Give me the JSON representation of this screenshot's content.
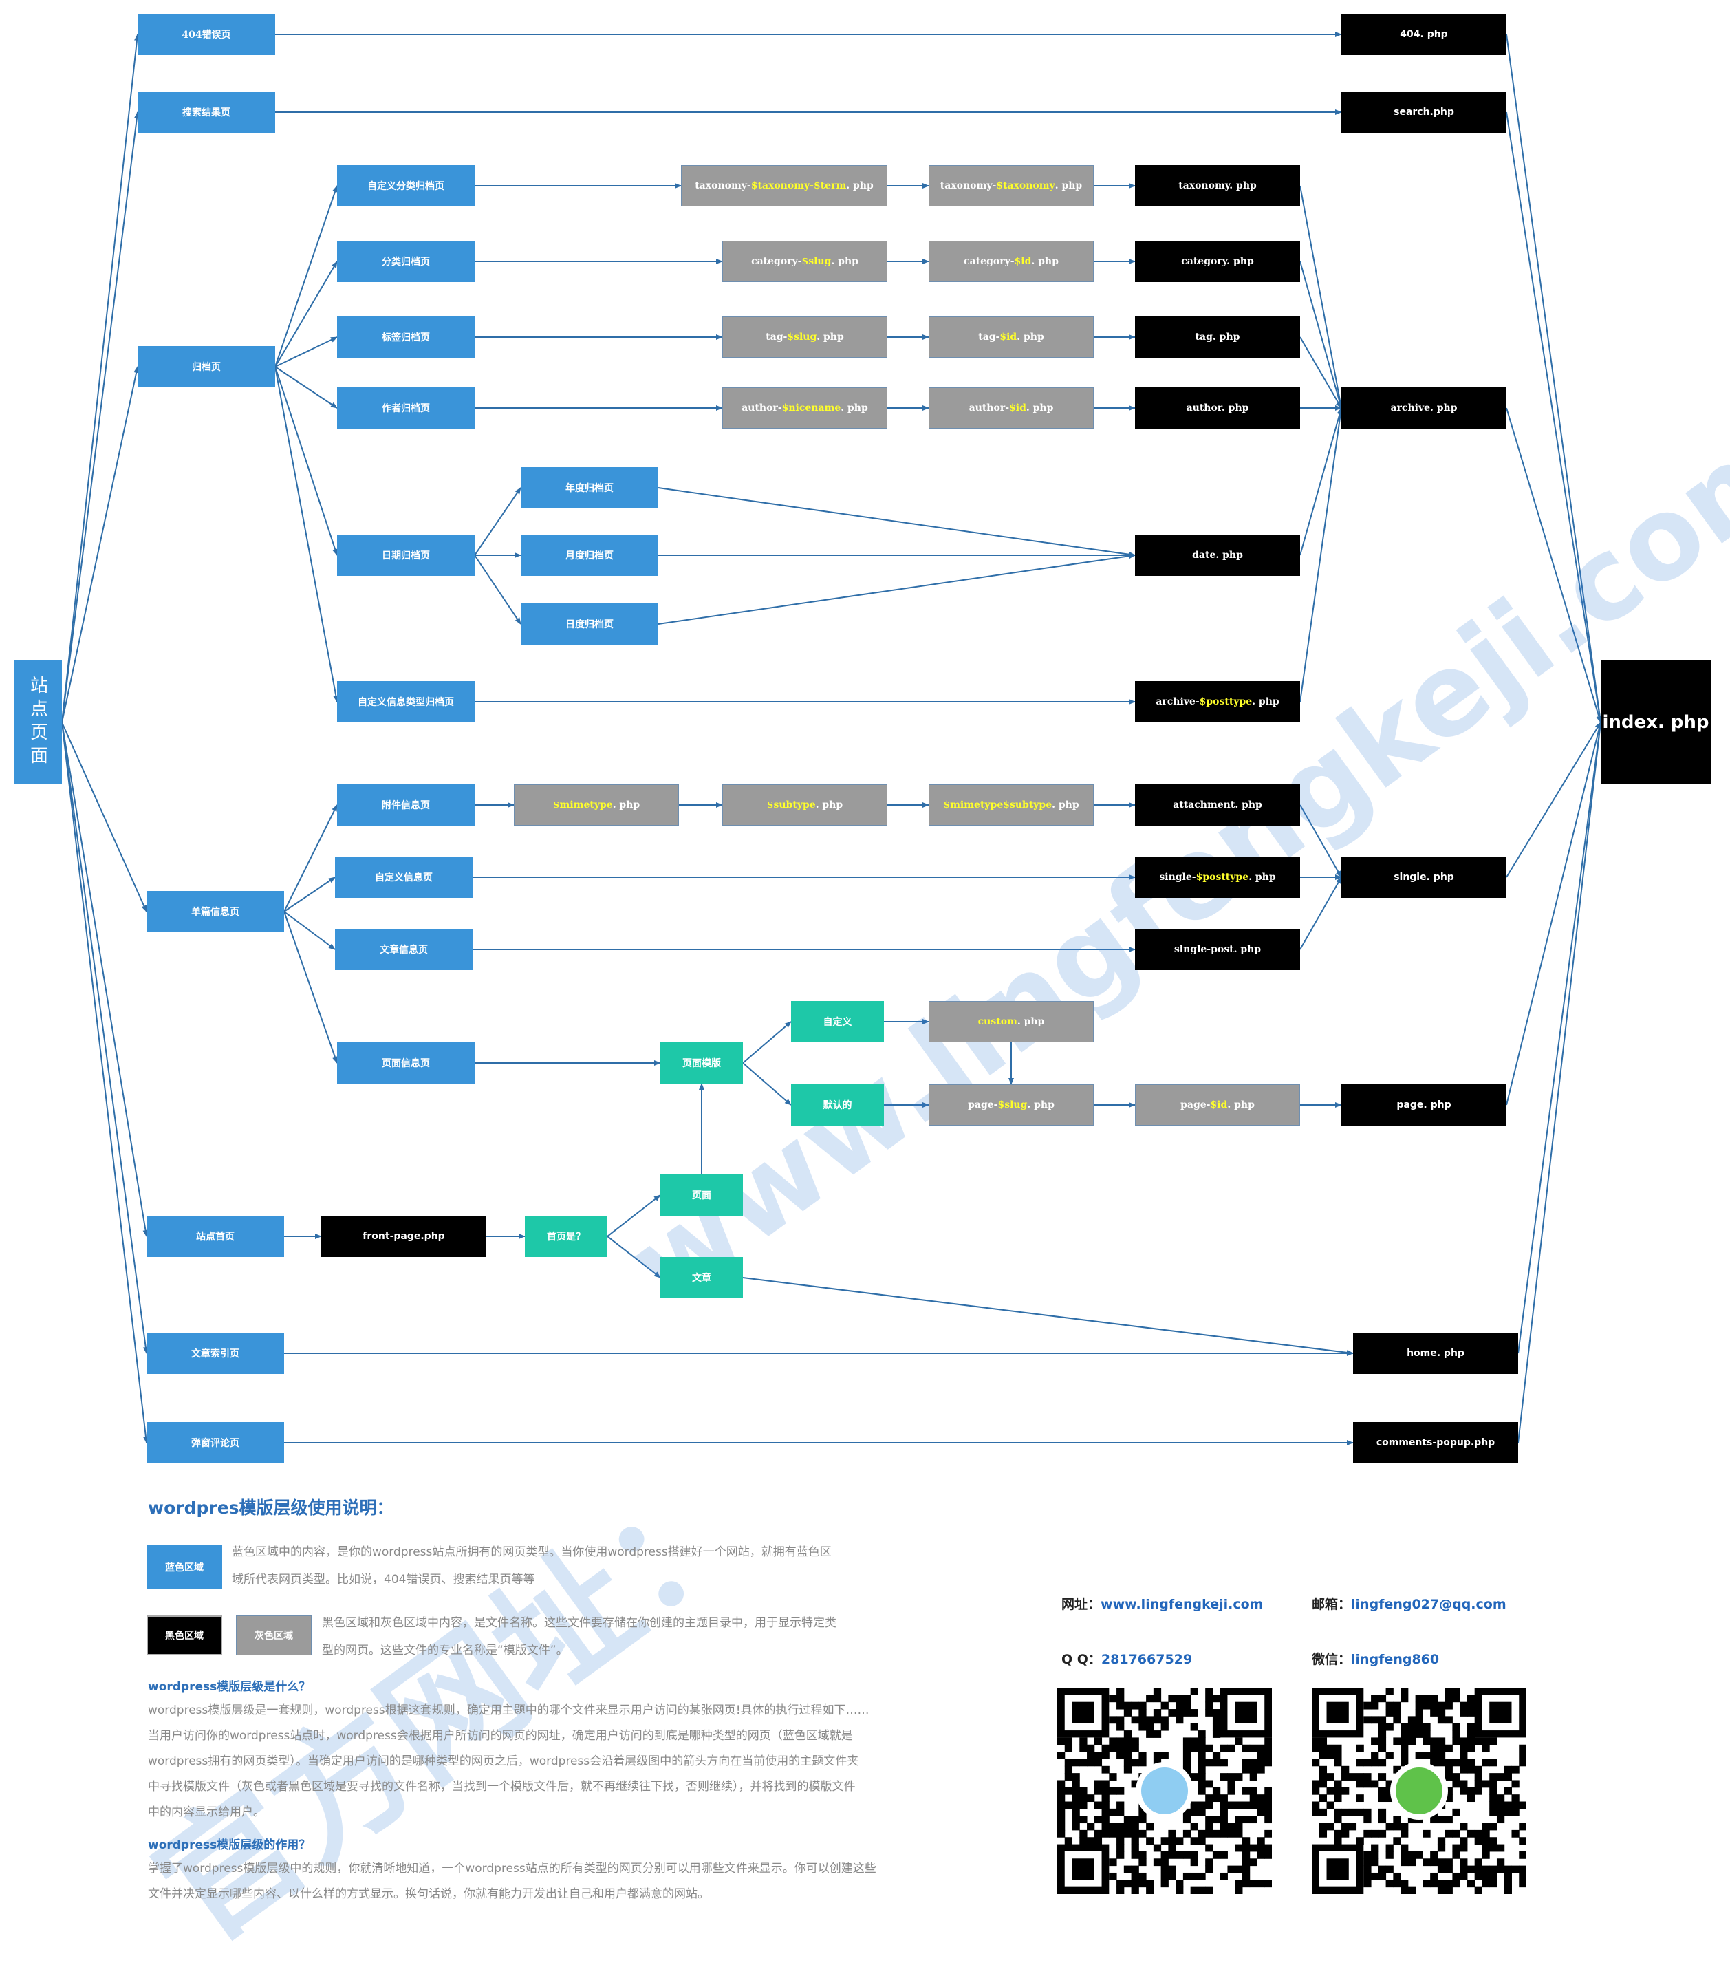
{
  "nodes": {
    "root": "站点页面",
    "n404": "404错误页",
    "search": "搜索结果页",
    "archive": "归档页",
    "single": "单篇信息页",
    "home_front": "站点首页",
    "post_index": "文章索引页",
    "comments": "弹窗评论页",
    "tax": "自定义分类归档页",
    "cat": "分类归档页",
    "tag": "标签归档页",
    "author": "作者归档页",
    "date": "日期归档页",
    "cpt_archive": "自定义信息类型归档页",
    "year": "年度归档页",
    "month": "月度归档页",
    "day": "日度归档页",
    "attach": "附件信息页",
    "custom_single": "自定义信息页",
    "post_single": "文章信息页",
    "page_single": "页面信息页",
    "page_tpl": "页面模版",
    "custom": "自定义",
    "default": "默认的",
    "is_front": "首页是？",
    "front_page_opt": "页面",
    "front_post_opt": "文章",
    "f_404": "404. php",
    "f_search": "search.php",
    "f_taxonomy": "taxonomy. php",
    "f_category": "category. php",
    "f_tag": "tag. php",
    "f_author": "author. php",
    "f_archive": "archive. php",
    "f_date": "date. php",
    "f_index": "index. php",
    "f_attachment": "attachment. php",
    "f_single": "single. php",
    "f_single_post": "single-post. php",
    "f_page": "page. php",
    "f_front_page": "front-page.php",
    "f_home": "home. php",
    "f_comments": "comments-popup.php",
    "tax_term_a": "taxonomy-",
    "tax_term_b": "$taxonomy-$term",
    "tax_term_c": ". php",
    "tax_tax_a": "taxonomy-",
    "tax_tax_b": "$taxonomy",
    "tax_tax_c": ". php",
    "cat_slug_a": "category-",
    "cat_slug_b": "$slug",
    "cat_slug_c": ". php",
    "cat_id_a": "category-",
    "cat_id_b": "$id",
    "cat_id_c": ". php",
    "tag_slug_a": "tag-",
    "tag_slug_b": "$slug",
    "tag_slug_c": ". php",
    "tag_id_a": "tag-",
    "tag_id_b": "$id",
    "tag_id_c": ". php",
    "auth_nice_a": "author-",
    "auth_nice_b": "$nicename",
    "auth_nice_c": ". php",
    "auth_id_a": "author-",
    "auth_id_b": "$id",
    "auth_id_c": ". php",
    "arch_pt_a": "archive-",
    "arch_pt_b": "$posttype",
    "arch_pt_c": ". php",
    "mime_a": "",
    "mime_b": "$mimetype",
    "mime_c": ". php",
    "sub_a": "",
    "sub_b": "$subtype",
    "sub_c": ". php",
    "mimesub_a": "",
    "mimesub_b": "$mimetype$subtype",
    "mimesub_c": ". php",
    "single_pt_a": "single-",
    "single_pt_b": "$posttype",
    "single_pt_c": ". php",
    "custom_php_a": "",
    "custom_php_b": "custom",
    "custom_php_c": ". php",
    "page_slug_a": "page-",
    "page_slug_b": "$slug",
    "page_slug_c": ". php",
    "page_id_a": "page-",
    "page_id_b": "$id",
    "page_id_c": ". php"
  },
  "legend": {
    "title": "wordpres模版层级使用说明：",
    "blue_label": "蓝色区域",
    "blue_text_1": "蓝色区域中的内容，是你的wordpress站点所拥有的网页类型。当你使用wordpress搭建好一个网站，就拥有蓝色区",
    "blue_text_2": "域所代表网页类型。比如说，404错误页、搜索结果页等等",
    "black_label": "黑色区域",
    "gray_label": "灰色区域",
    "bg_text_1": "黑色区域和灰色区域中内容，是文件名称。这些文件要存储在你创建的主题目录中，用于显示特定类",
    "bg_text_2": "型的网页。这些文件的专业名称是“模版文件”。",
    "q1": "wordpress模版层级是什么？",
    "a1_1": "wordpress模版层级是一套规则，wordpress根据这套规则，确定用主题中的哪个文件来显示用户访问的某张网页!具体的执行过程如下……",
    "a1_2": "当用户访问你的wordpress站点时，wordpress会根据用户所访问的网页的网址，确定用户访问的到底是哪种类型的网页（蓝色区域就是",
    "a1_3": "wordpress拥有的网页类型）。当确定用户访问的是哪种类型的网页之后，wordpress会沿着层级图中的箭头方向在当前使用的主题文件夹",
    "a1_4": "中寻找模版文件（灰色或者黑色区域是要寻找的文件名称，当找到一个模版文件后，就不再继续往下找，否则继续），并将找到的模版文件",
    "a1_5": "中的内容显示给用户。",
    "q2": "wordpress模版层级的作用？",
    "a2_1": "掌握了wordpress模版层级中的规则，你就清晰地知道，一个wordpress站点的所有类型的网页分别可以用哪些文件来显示。你可以创建这些",
    "a2_2": "文件并决定显示哪些内容、以什么样的方式显示。换句话说，你就有能力开发出让自己和用户都满意的网站。"
  },
  "contact": {
    "web_label": "网址：",
    "web": "www.lingfengkeji.com",
    "mail_label": "邮箱：",
    "mail": "lingfeng027@qq.com",
    "qq_label": "Q Q：",
    "qq": "2817667529",
    "wechat_label": "微信：",
    "wechat": "lingfeng860"
  },
  "watermark": {
    "line1": "www.lingfengkeji.com",
    "line2": "官方网址："
  },
  "colors": {
    "blue": "#3a94d9",
    "black": "#000000",
    "gray": "#9b9b9b",
    "teal": "#1ec8a8",
    "edge": "#2f6ea8",
    "variable": "#ffff2a",
    "heading": "#2d6fb8"
  },
  "icons": {
    "qr_qq": "qq-qr-code-icon",
    "qr_wechat": "wechat-qr-code-icon"
  }
}
